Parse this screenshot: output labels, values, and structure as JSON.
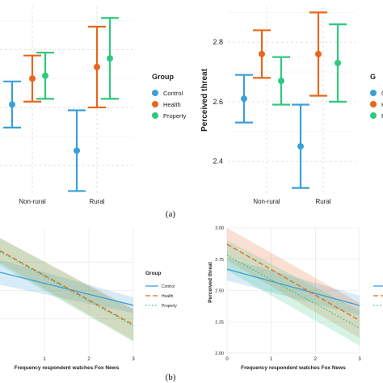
{
  "figure_labels": [
    "(a)",
    "(b)"
  ],
  "colors": {
    "Control": "#3b9fd8",
    "Health": "#e8661c",
    "Property": "#2dc97f"
  },
  "chart_data": [
    {
      "type": "scatter",
      "panel": "a-left",
      "title": "",
      "xlabel": "",
      "ylabel": "",
      "categories": [
        "Non-rural",
        "Rural"
      ],
      "ylim": [
        2.3,
        2.95
      ],
      "grid": true,
      "series": [
        {
          "name": "Control",
          "values": [
            2.61,
            2.45
          ],
          "lower": [
            2.53,
            2.31
          ],
          "upper": [
            2.69,
            2.59
          ]
        },
        {
          "name": "Health",
          "values": [
            2.7,
            2.74
          ],
          "lower": [
            2.62,
            2.6
          ],
          "upper": [
            2.78,
            2.88
          ]
        },
        {
          "name": "Property",
          "values": [
            2.71,
            2.77
          ],
          "lower": [
            2.63,
            2.63
          ],
          "upper": [
            2.79,
            2.91
          ]
        }
      ],
      "legend": {
        "title": "Group",
        "position": "right",
        "entries": [
          "Control",
          "Health",
          "Property"
        ]
      }
    },
    {
      "type": "scatter",
      "panel": "a-right",
      "title": "",
      "xlabel": "",
      "ylabel": "Perceived threat",
      "categories": [
        "Non-rural",
        "Rural"
      ],
      "yticks": [
        2.4,
        2.6,
        2.8
      ],
      "ylim": [
        2.29,
        2.92
      ],
      "grid": true,
      "series": [
        {
          "name": "Control",
          "values": [
            2.61,
            2.45
          ],
          "lower": [
            2.53,
            2.31
          ],
          "upper": [
            2.69,
            2.59
          ]
        },
        {
          "name": "Health",
          "values": [
            2.76,
            2.76
          ],
          "lower": [
            2.68,
            2.62
          ],
          "upper": [
            2.84,
            2.9
          ]
        },
        {
          "name": "Property",
          "values": [
            2.67,
            2.73
          ],
          "lower": [
            2.59,
            2.6
          ],
          "upper": [
            2.75,
            2.86
          ]
        }
      ],
      "legend": {
        "title": "G",
        "position": "right",
        "entries": [
          "Control",
          "Health",
          "Property"
        ]
      }
    },
    {
      "type": "line",
      "panel": "b-left",
      "title": "",
      "xlabel": "Frequency respondent watches Fox News",
      "ylabel": "",
      "xticks": [
        1,
        2,
        3
      ],
      "xlim": [
        0,
        3
      ],
      "ylim": [
        1.95,
        3.05
      ],
      "grid": true,
      "series": [
        {
          "name": "Control",
          "dash": "solid",
          "x": [
            0,
            3
          ],
          "y": [
            2.66,
            2.37
          ],
          "lower": [
            2.55,
            2.3
          ],
          "upper": [
            2.77,
            2.44
          ]
        },
        {
          "name": "Health",
          "dash": "dashed",
          "x": [
            0,
            3
          ],
          "y": [
            2.85,
            2.2
          ],
          "lower": [
            2.74,
            2.06
          ],
          "upper": [
            2.96,
            2.34
          ]
        },
        {
          "name": "Property",
          "dash": "dotted",
          "x": [
            0,
            3
          ],
          "y": [
            2.84,
            2.19
          ],
          "lower": [
            2.72,
            2.05
          ],
          "upper": [
            2.96,
            2.33
          ]
        }
      ],
      "legend": {
        "title": "Group",
        "position": "right",
        "entries": [
          "Control",
          "Health",
          "Property"
        ]
      }
    },
    {
      "type": "line",
      "panel": "b-right",
      "title": "",
      "xlabel": "Frequency respondent watches Fox News",
      "ylabel": "Perceived threat",
      "xticks": [
        0,
        1,
        2,
        3
      ],
      "yticks": [
        2.0,
        2.25,
        2.5,
        2.75,
        3.0
      ],
      "ytick_labels": [
        "2.00",
        "2.25",
        "2.50",
        "2.75",
        "3.00"
      ],
      "xlim": [
        0,
        3
      ],
      "ylim": [
        2.0,
        3.0
      ],
      "grid": true,
      "series": [
        {
          "name": "Control",
          "dash": "solid",
          "x": [
            0,
            3
          ],
          "y": [
            2.67,
            2.38
          ],
          "lower": [
            2.58,
            2.3
          ],
          "upper": [
            2.76,
            2.46
          ]
        },
        {
          "name": "Health",
          "dash": "dashed",
          "x": [
            0,
            3
          ],
          "y": [
            2.87,
            2.26
          ],
          "lower": [
            2.74,
            2.12
          ],
          "upper": [
            3.0,
            2.4
          ]
        },
        {
          "name": "Property",
          "dash": "dotted",
          "x": [
            0,
            3
          ],
          "y": [
            2.78,
            2.2
          ],
          "lower": [
            2.66,
            2.06
          ],
          "upper": [
            2.9,
            2.34
          ]
        }
      ],
      "legend": {
        "title": "",
        "position": "right",
        "entries": [
          "Control",
          "Health",
          "Property"
        ]
      }
    }
  ]
}
